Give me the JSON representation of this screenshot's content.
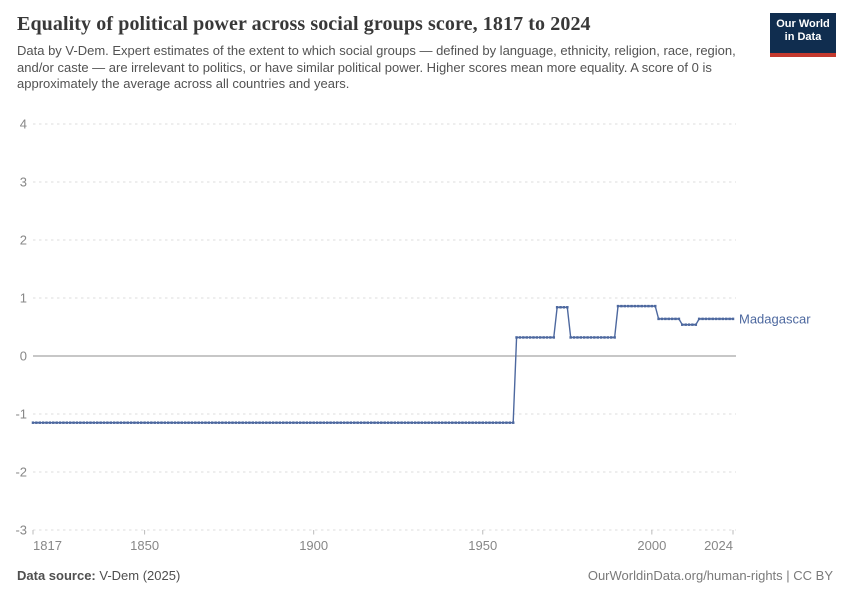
{
  "header": {
    "title": "Equality of political power across social groups score, 1817 to 2024",
    "subtitle": "Data by V-Dem. Expert estimates of the extent to which social groups — defined by language, ethnicity, religion, race, region, and/or caste — are irrelevant to politics, or have similar political power. Higher scores mean more equality. A score of 0 is approximately the average across all countries and years.",
    "logo": {
      "line1": "Our World",
      "line2": "in Data",
      "bg_color": "#102d4f",
      "stripe_color": "#c4392e"
    }
  },
  "chart_data": {
    "type": "line",
    "title": "Equality of political power across social groups score",
    "xlabel": "",
    "ylabel": "",
    "x": {
      "min": 1817,
      "max": 2024,
      "ticks": [
        1817,
        1850,
        1900,
        1950,
        2000,
        2024
      ]
    },
    "y": {
      "min": -3,
      "max": 4,
      "ticks": [
        4,
        3,
        2,
        1,
        0,
        -1,
        -2,
        -3
      ]
    },
    "grid": "horizontal-dashed",
    "legend_position": "entity-label-right-of-line",
    "series": [
      {
        "name": "Madagascar",
        "color": "#4d689f",
        "step_segments": [
          {
            "from": 1817,
            "to": 1959,
            "value": -1.15
          },
          {
            "from": 1960,
            "to": 1971,
            "value": 0.32
          },
          {
            "from": 1972,
            "to": 1975,
            "value": 0.84
          },
          {
            "from": 1976,
            "to": 1989,
            "value": 0.32
          },
          {
            "from": 1990,
            "to": 2001,
            "value": 0.86
          },
          {
            "from": 2002,
            "to": 2008,
            "value": 0.64
          },
          {
            "from": 2009,
            "to": 2013,
            "value": 0.54
          },
          {
            "from": 2014,
            "to": 2024,
            "value": 0.64
          }
        ]
      }
    ]
  },
  "footer": {
    "source_label": "Data source:",
    "source_value": "V-Dem (2025)",
    "rights": "OurWorldinData.org/human-rights | CC BY"
  }
}
